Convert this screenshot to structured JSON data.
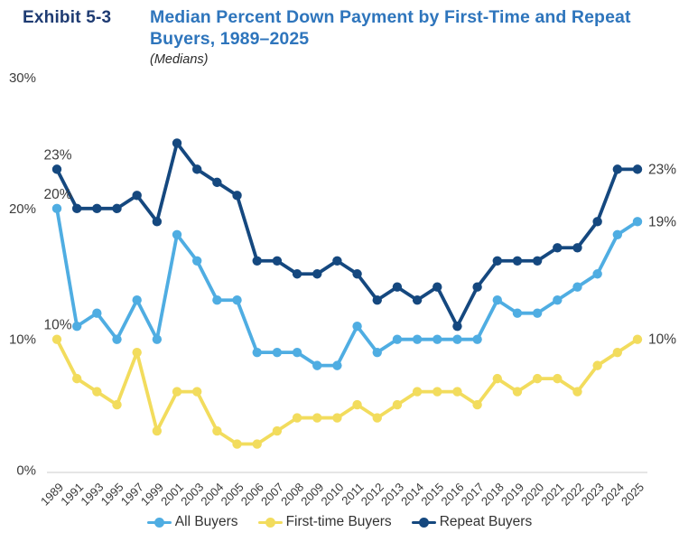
{
  "header": {
    "exhibit_label": "Exhibit 5-3",
    "title_line1": "Median Percent Down Payment by First-Time and Repeat",
    "title_line2": "Buyers, 1989–2025",
    "subtitle": "(Medians)"
  },
  "colors": {
    "exhibit_navy": "#1E3B72",
    "title_blue": "#2E75BC",
    "axis_text": "#3C3C3C",
    "axis_line": "#CBCBCB",
    "all_buyers": "#4FADE2",
    "first_time_buyers": "#F2DC5D",
    "repeat_buyers": "#15487F"
  },
  "chart_data": {
    "type": "line",
    "title": "Median Percent Down Payment by First-Time and Repeat Buyers, 1989–2025",
    "subtitle": "(Medians)",
    "unit": "%",
    "grid": "off",
    "legend_position": "bottom",
    "ylim": [
      0,
      30
    ],
    "y_ticks": [
      30,
      20,
      10,
      0
    ],
    "categories": [
      "1989",
      "1991",
      "1993",
      "1995",
      "1997",
      "1999",
      "2001",
      "2003",
      "2004",
      "2005",
      "2006",
      "2007",
      "2008",
      "2009",
      "2010",
      "2011",
      "2012",
      "2013",
      "2014",
      "2015",
      "2016",
      "2017",
      "2018",
      "2019",
      "2020",
      "2021",
      "2022",
      "2023",
      "2024",
      "2025"
    ],
    "series": [
      {
        "name": "All Buyers",
        "color": "#4FADE2",
        "values": [
          20,
          11,
          12,
          10,
          13,
          10,
          18,
          16,
          13,
          13,
          9,
          9,
          9,
          8,
          8,
          11,
          9,
          10,
          10,
          10,
          10,
          10,
          13,
          12,
          12,
          13,
          14,
          15,
          18,
          19
        ]
      },
      {
        "name": "First-time Buyers",
        "color": "#F2DC5D",
        "values": [
          10,
          7,
          6,
          5,
          9,
          3,
          6,
          6,
          3,
          2,
          2,
          3,
          4,
          4,
          4,
          5,
          4,
          5,
          6,
          6,
          6,
          5,
          7,
          6,
          7,
          7,
          6,
          8,
          9,
          10
        ]
      },
      {
        "name": "Repeat Buyers",
        "color": "#15487F",
        "values": [
          23,
          20,
          20,
          20,
          21,
          19,
          25,
          23,
          22,
          21,
          16,
          16,
          15,
          15,
          16,
          15,
          13,
          14,
          13,
          14,
          11,
          14,
          16,
          16,
          16,
          17,
          17,
          19,
          23,
          23
        ]
      }
    ],
    "annotations": {
      "left": [
        {
          "series": 2,
          "label": "23%"
        },
        {
          "series": 0,
          "label": "20%"
        },
        {
          "series": 1,
          "label": "10%"
        }
      ],
      "right": [
        {
          "series": 2,
          "label": "23%"
        },
        {
          "series": 0,
          "label": "19%"
        },
        {
          "series": 1,
          "label": "10%"
        }
      ]
    }
  }
}
